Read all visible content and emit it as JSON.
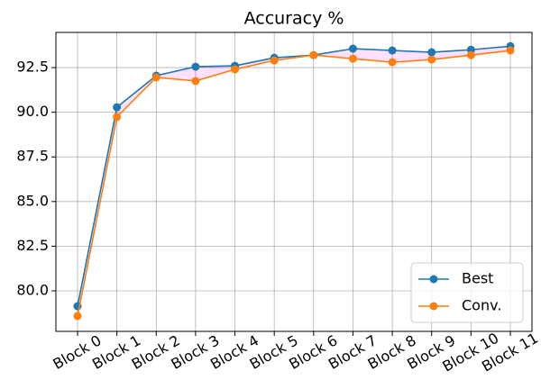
{
  "chart_data": {
    "type": "line",
    "title": "Accuracy %",
    "categories": [
      "Block 0",
      "Block 1",
      "Block 2",
      "Block 3",
      "Block 4",
      "Block 5",
      "Block 6",
      "Block 7",
      "Block 8",
      "Block 9",
      "Block 10",
      "Block 11"
    ],
    "series": [
      {
        "name": "Best",
        "color": "#1f77b4",
        "values": [
          79.14,
          90.28,
          92.05,
          92.55,
          92.6,
          93.05,
          93.2,
          93.56,
          93.46,
          93.36,
          93.5,
          93.7
        ]
      },
      {
        "name": "Conv.",
        "color": "#ff7f0e",
        "values": [
          78.59,
          89.73,
          91.95,
          91.75,
          92.4,
          92.9,
          93.2,
          93.0,
          92.8,
          92.95,
          93.2,
          93.46
        ]
      }
    ],
    "ylim": [
      77.73,
      94.47
    ],
    "yticks": [
      {
        "value": 80,
        "label": "80.0"
      },
      82.5,
      {
        "value": 85,
        "label": "85.0"
      },
      87.5,
      {
        "value": 90,
        "label": "90.0"
      },
      92.5
    ],
    "grid": true,
    "legend": "lower right",
    "fill_between_color": "#ff00ff"
  }
}
